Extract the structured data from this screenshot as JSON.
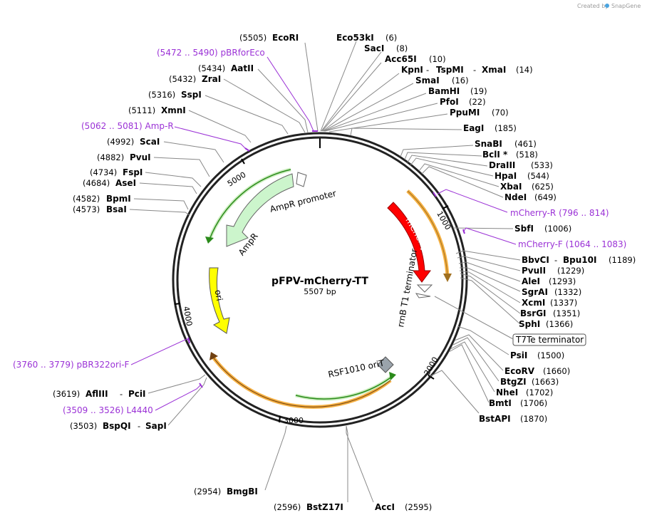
{
  "credit": {
    "prefix": "Created by",
    "brand": "SnapGene"
  },
  "plasmid": {
    "name": "pFPV-mCherry-TT",
    "size": "5507 bp"
  },
  "ticks": [
    "1000",
    "2000",
    "3000",
    "4000",
    "5000"
  ],
  "features": {
    "mcherry": "mCherry",
    "rrnb": "rrnB T1 terminator",
    "amp_promoter": "AmpR promoter",
    "ampr": "AmpR",
    "ori": "ori",
    "rsf": "RSF1010 oriT",
    "t7te": "T7Te terminator"
  },
  "sites": {
    "ecori": {
      "name": "EcoRI",
      "pos": "(5505)"
    },
    "eco53ki": {
      "name": "Eco53kI",
      "pos": "(6)"
    },
    "saci": {
      "name": "SacI",
      "pos": "(8)"
    },
    "acc65i": {
      "name": "Acc65I",
      "pos": "(10)"
    },
    "kpni": {
      "name": "KpnI",
      "name2": "TspMI",
      "name3": "XmaI",
      "pos": "(14)"
    },
    "smai": {
      "name": "SmaI",
      "pos": "(16)"
    },
    "bamhi": {
      "name": "BamHI",
      "pos": "(19)"
    },
    "pfoi": {
      "name": "PfoI",
      "pos": "(22)"
    },
    "ppumi": {
      "name": "PpuMI",
      "pos": "(70)"
    },
    "eagi": {
      "name": "EagI",
      "pos": "(185)"
    },
    "snabi": {
      "name": "SnaBI",
      "pos": "(461)"
    },
    "bcli": {
      "name": "BclI *",
      "pos": "(518)"
    },
    "draiii": {
      "name": "DraIII",
      "pos": "(533)"
    },
    "hpai": {
      "name": "HpaI",
      "pos": "(544)"
    },
    "xbai": {
      "name": "XbaI",
      "pos": "(625)"
    },
    "ndei": {
      "name": "NdeI",
      "pos": "(649)"
    },
    "sbfi": {
      "name": "SbfI",
      "pos": "(1006)"
    },
    "bbvci": {
      "name": "BbvCI",
      "name2": "Bpu10I",
      "pos": "(1189)"
    },
    "pvuii": {
      "name": "PvuII",
      "pos": "(1229)"
    },
    "alei": {
      "name": "AleI",
      "pos": "(1293)"
    },
    "sgrai": {
      "name": "SgrAI",
      "pos": "(1332)"
    },
    "xcmi": {
      "name": "XcmI",
      "pos": "(1337)"
    },
    "bsrgi": {
      "name": "BsrGI",
      "pos": "(1351)"
    },
    "sphi": {
      "name": "SphI",
      "pos": "(1366)"
    },
    "psii": {
      "name": "PsiI",
      "pos": "(1500)"
    },
    "ecorv": {
      "name": "EcoRV",
      "pos": "(1660)"
    },
    "btgzi": {
      "name": "BtgZI",
      "pos": "(1663)"
    },
    "nhei": {
      "name": "NheI",
      "pos": "(1702)"
    },
    "bmti": {
      "name": "BmtI",
      "pos": "(1706)"
    },
    "bstapi": {
      "name": "BstAPI",
      "pos": "(1870)"
    },
    "acci": {
      "name": "AccI",
      "pos": "(2595)"
    },
    "bstz17i": {
      "name": "BstZ17I",
      "pos": "(2596)"
    },
    "bmgbi": {
      "name": "BmgBI",
      "pos": "(2954)"
    },
    "bspqi": {
      "name": "BspQI",
      "name2": "SapI",
      "pos": "(3503)"
    },
    "afliii": {
      "name": "AflIII",
      "name2": "PciI",
      "pos": "(3619)"
    },
    "bsai": {
      "name": "BsaI",
      "pos": "(4573)"
    },
    "bpmi": {
      "name": "BpmI",
      "pos": "(4582)"
    },
    "asei": {
      "name": "AseI",
      "pos": "(4684)"
    },
    "fspi": {
      "name": "FspI",
      "pos": "(4734)"
    },
    "pvui": {
      "name": "PvuI",
      "pos": "(4882)"
    },
    "scai": {
      "name": "ScaI",
      "pos": "(4992)"
    },
    "xmni": {
      "name": "XmnI",
      "pos": "(5111)"
    },
    "sspi": {
      "name": "SspI",
      "pos": "(5316)"
    },
    "zrai": {
      "name": "ZraI",
      "pos": "(5432)"
    },
    "aatii": {
      "name": "AatII",
      "pos": "(5434)"
    }
  },
  "primers": {
    "pbrforeco": "(5472 .. 5490)  pBRforEco",
    "ampr_primer": "(5062 .. 5081)  Amp-R",
    "mcherry_r": "mCherry-R   (796 .. 814)",
    "mcherry_f": "mCherry-F   (1064 .. 1083)",
    "pbr322ori": "(3760 .. 3779)  pBR322ori-F",
    "l4440": "(3509 .. 3526)  L4440"
  },
  "colors": {
    "mcherry": "#ff0000",
    "ori": "#ffff00",
    "ampr": "#ccf5cc",
    "primer": "#9b32d6",
    "orange": "#f5b042"
  }
}
